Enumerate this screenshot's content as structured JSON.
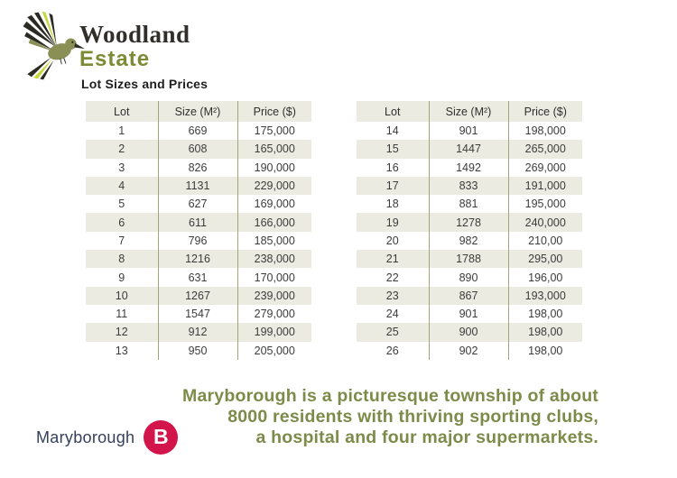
{
  "brand": {
    "name_line1": "Woodland",
    "name_line2": "Estate"
  },
  "heading": "Lot Sizes and Prices",
  "tables": [
    {
      "columns": [
        "Lot",
        "Size (M²)",
        "Price ($)"
      ],
      "rows": [
        [
          "1",
          "669",
          "175,000"
        ],
        [
          "2",
          "608",
          "165,000"
        ],
        [
          "3",
          "826",
          "190,000"
        ],
        [
          "4",
          "1131",
          "229,000"
        ],
        [
          "5",
          "627",
          "169,000"
        ],
        [
          "6",
          "611",
          "166,000"
        ],
        [
          "7",
          "796",
          "185,000"
        ],
        [
          "8",
          "1216",
          "238,000"
        ],
        [
          "9",
          "631",
          "170,000"
        ],
        [
          "10",
          "1267",
          "239,000"
        ],
        [
          "11",
          "1547",
          "279,000"
        ],
        [
          "12",
          "912",
          "199,000"
        ],
        [
          "13",
          "950",
          "205,000"
        ]
      ]
    },
    {
      "columns": [
        "Lot",
        "Size (M²)",
        "Price ($)"
      ],
      "rows": [
        [
          "14",
          "901",
          "198,000"
        ],
        [
          "15",
          "1447",
          "265,000"
        ],
        [
          "16",
          "1492",
          "269,000"
        ],
        [
          "17",
          "833",
          "191,000"
        ],
        [
          "18",
          "881",
          "195,000"
        ],
        [
          "19",
          "1278",
          "240,000"
        ],
        [
          "20",
          "982",
          "210,00"
        ],
        [
          "21",
          "1788",
          "295,00"
        ],
        [
          "22",
          "890",
          "196,00"
        ],
        [
          "23",
          "867",
          "193,000"
        ],
        [
          "24",
          "901",
          "198,00"
        ],
        [
          "25",
          "900",
          "198,00"
        ],
        [
          "26",
          "902",
          "198,00"
        ]
      ]
    }
  ],
  "footer": {
    "tagline_lines": [
      "Maryborough is a picturesque township of about",
      "8000 residents with thriving sporting clubs,",
      "a hospital and four major supermarkets."
    ],
    "logo_text": "Maryborough",
    "logo_badge": "B"
  },
  "colors": {
    "estate_green": "#7c8b34",
    "tagline_olive": "#7d8b4a",
    "table_stripe": "#ecebe2",
    "table_divider": "#a3a478",
    "logo_navy": "#35405c",
    "logo_red": "#d2154a",
    "bird_body": "#8a8f55",
    "bird_accent": "#c6d63c"
  }
}
